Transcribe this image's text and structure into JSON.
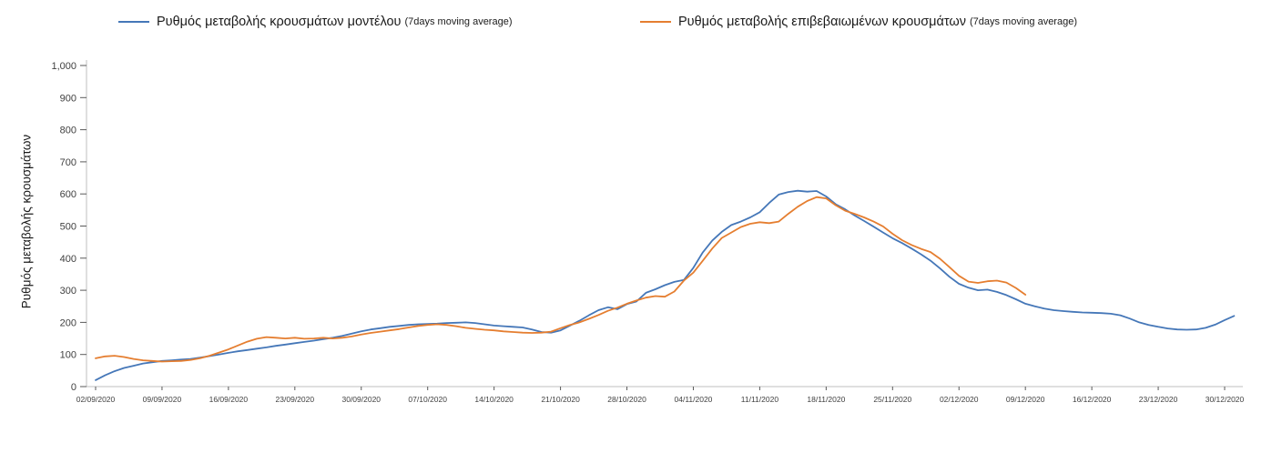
{
  "legend": {
    "items": [
      {
        "label": "Ρυθμός μεταβολής κρουσμάτων μοντέλου",
        "suffix": "(7days moving average)"
      },
      {
        "label": "Ρυθμός μεταβολής επιβεβαιωμένων κρουσμάτων",
        "suffix": "(7days moving average)"
      }
    ]
  },
  "chart_data": {
    "type": "line",
    "title": "",
    "xlabel": "",
    "ylabel": "Ρυθμός μεταβολής κρουσμάτων",
    "ylim": [
      0,
      1000
    ],
    "grid": false,
    "legend_position": "top",
    "colors": {
      "model_series": "#4577b8",
      "confirmed_series": "#e57e30",
      "axis": "#bfbfbf",
      "tick": "#595959"
    },
    "y_axis": {
      "ticks": [
        {
          "value": 0,
          "label": "0"
        },
        {
          "value": 100,
          "label": "100"
        },
        {
          "value": 200,
          "label": "200"
        },
        {
          "value": 300,
          "label": "300"
        },
        {
          "value": 400,
          "label": "400"
        },
        {
          "value": 500,
          "label": "500"
        },
        {
          "value": 600,
          "label": "600"
        },
        {
          "value": 700,
          "label": "700"
        },
        {
          "value": 800,
          "label": "800"
        },
        {
          "value": 900,
          "label": "900"
        },
        {
          "value": 1000,
          "label": "1,000"
        }
      ]
    },
    "x_axis": {
      "unit": "days since 02/09/2020",
      "ticks": [
        {
          "day": 0,
          "label": "02/09/2020"
        },
        {
          "day": 7,
          "label": "09/09/2020"
        },
        {
          "day": 14,
          "label": "16/09/2020"
        },
        {
          "day": 21,
          "label": "23/09/2020"
        },
        {
          "day": 28,
          "label": "30/09/2020"
        },
        {
          "day": 35,
          "label": "07/10/2020"
        },
        {
          "day": 42,
          "label": "14/10/2020"
        },
        {
          "day": 49,
          "label": "21/10/2020"
        },
        {
          "day": 56,
          "label": "28/10/2020"
        },
        {
          "day": 63,
          "label": "04/11/2020"
        },
        {
          "day": 70,
          "label": "11/11/2020"
        },
        {
          "day": 77,
          "label": "18/11/2020"
        },
        {
          "day": 84,
          "label": "25/11/2020"
        },
        {
          "day": 91,
          "label": "02/12/2020"
        },
        {
          "day": 98,
          "label": "09/12/2020"
        },
        {
          "day": 105,
          "label": "16/12/2020"
        },
        {
          "day": 112,
          "label": "23/12/2020"
        },
        {
          "day": 119,
          "label": "30/12/2020"
        }
      ]
    },
    "series": [
      {
        "name": "Ρυθμός μεταβολής κρουσμάτων μοντέλου (7days moving average)",
        "color": "#4577b8",
        "points": [
          [
            0,
            20
          ],
          [
            1,
            35
          ],
          [
            2,
            48
          ],
          [
            3,
            58
          ],
          [
            4,
            65
          ],
          [
            5,
            72
          ],
          [
            6,
            76
          ],
          [
            7,
            80
          ],
          [
            8,
            82
          ],
          [
            9,
            84
          ],
          [
            10,
            86
          ],
          [
            11,
            90
          ],
          [
            12,
            95
          ],
          [
            13,
            100
          ],
          [
            14,
            105
          ],
          [
            15,
            110
          ],
          [
            16,
            114
          ],
          [
            17,
            118
          ],
          [
            18,
            122
          ],
          [
            19,
            127
          ],
          [
            20,
            131
          ],
          [
            21,
            135
          ],
          [
            22,
            139
          ],
          [
            23,
            143
          ],
          [
            24,
            148
          ],
          [
            25,
            152
          ],
          [
            26,
            158
          ],
          [
            27,
            165
          ],
          [
            28,
            172
          ],
          [
            29,
            178
          ],
          [
            30,
            182
          ],
          [
            31,
            186
          ],
          [
            32,
            189
          ],
          [
            33,
            192
          ],
          [
            34,
            194
          ],
          [
            35,
            195
          ],
          [
            36,
            196
          ],
          [
            37,
            198
          ],
          [
            38,
            199
          ],
          [
            39,
            200
          ],
          [
            40,
            198
          ],
          [
            41,
            194
          ],
          [
            42,
            190
          ],
          [
            43,
            188
          ],
          [
            44,
            186
          ],
          [
            45,
            184
          ],
          [
            46,
            178
          ],
          [
            47,
            170
          ],
          [
            48,
            168
          ],
          [
            49,
            175
          ],
          [
            50,
            190
          ],
          [
            51,
            205
          ],
          [
            52,
            222
          ],
          [
            53,
            238
          ],
          [
            54,
            247
          ],
          [
            55,
            241
          ],
          [
            56,
            257
          ],
          [
            57,
            265
          ],
          [
            58,
            292
          ],
          [
            59,
            303
          ],
          [
            60,
            316
          ],
          [
            61,
            326
          ],
          [
            62,
            332
          ],
          [
            63,
            370
          ],
          [
            64,
            418
          ],
          [
            65,
            455
          ],
          [
            66,
            482
          ],
          [
            67,
            503
          ],
          [
            68,
            514
          ],
          [
            69,
            527
          ],
          [
            70,
            543
          ],
          [
            71,
            572
          ],
          [
            72,
            598
          ],
          [
            73,
            606
          ],
          [
            74,
            610
          ],
          [
            75,
            607
          ],
          [
            76,
            609
          ],
          [
            77,
            592
          ],
          [
            78,
            568
          ],
          [
            79,
            552
          ],
          [
            80,
            533
          ],
          [
            81,
            516
          ],
          [
            82,
            498
          ],
          [
            83,
            480
          ],
          [
            84,
            462
          ],
          [
            85,
            447
          ],
          [
            86,
            430
          ],
          [
            87,
            412
          ],
          [
            88,
            392
          ],
          [
            89,
            368
          ],
          [
            90,
            342
          ],
          [
            91,
            320
          ],
          [
            92,
            308
          ],
          [
            93,
            300
          ],
          [
            94,
            302
          ],
          [
            95,
            295
          ],
          [
            96,
            285
          ],
          [
            97,
            272
          ],
          [
            98,
            258
          ],
          [
            99,
            250
          ],
          [
            100,
            243
          ],
          [
            101,
            238
          ],
          [
            102,
            235
          ],
          [
            103,
            233
          ],
          [
            104,
            231
          ],
          [
            105,
            230
          ],
          [
            106,
            229
          ],
          [
            107,
            227
          ],
          [
            108,
            222
          ],
          [
            109,
            212
          ],
          [
            110,
            200
          ],
          [
            111,
            192
          ],
          [
            112,
            186
          ],
          [
            113,
            181
          ],
          [
            114,
            178
          ],
          [
            115,
            177
          ],
          [
            116,
            178
          ],
          [
            117,
            183
          ],
          [
            118,
            193
          ],
          [
            119,
            207
          ],
          [
            120,
            220
          ]
        ]
      },
      {
        "name": "Ρυθμός μεταβολής επιβεβαιωμένων κρουσμάτων (7days moving average)",
        "color": "#e57e30",
        "points": [
          [
            0,
            88
          ],
          [
            1,
            94
          ],
          [
            2,
            96
          ],
          [
            3,
            92
          ],
          [
            4,
            86
          ],
          [
            5,
            82
          ],
          [
            6,
            80
          ],
          [
            7,
            78
          ],
          [
            8,
            79
          ],
          [
            9,
            80
          ],
          [
            10,
            83
          ],
          [
            11,
            88
          ],
          [
            12,
            96
          ],
          [
            13,
            106
          ],
          [
            14,
            116
          ],
          [
            15,
            128
          ],
          [
            16,
            140
          ],
          [
            17,
            149
          ],
          [
            18,
            154
          ],
          [
            19,
            152
          ],
          [
            20,
            150
          ],
          [
            21,
            152
          ],
          [
            22,
            149
          ],
          [
            23,
            150
          ],
          [
            24,
            152
          ],
          [
            25,
            150
          ],
          [
            26,
            152
          ],
          [
            27,
            156
          ],
          [
            28,
            162
          ],
          [
            29,
            167
          ],
          [
            30,
            171
          ],
          [
            31,
            175
          ],
          [
            32,
            179
          ],
          [
            33,
            184
          ],
          [
            34,
            189
          ],
          [
            35,
            192
          ],
          [
            36,
            194
          ],
          [
            37,
            192
          ],
          [
            38,
            188
          ],
          [
            39,
            183
          ],
          [
            40,
            180
          ],
          [
            41,
            177
          ],
          [
            42,
            175
          ],
          [
            43,
            172
          ],
          [
            44,
            170
          ],
          [
            45,
            168
          ],
          [
            46,
            167
          ],
          [
            47,
            168
          ],
          [
            48,
            171
          ],
          [
            49,
            182
          ],
          [
            50,
            192
          ],
          [
            51,
            200
          ],
          [
            52,
            211
          ],
          [
            53,
            223
          ],
          [
            54,
            236
          ],
          [
            55,
            246
          ],
          [
            56,
            258
          ],
          [
            57,
            268
          ],
          [
            58,
            277
          ],
          [
            59,
            282
          ],
          [
            60,
            280
          ],
          [
            61,
            296
          ],
          [
            62,
            330
          ],
          [
            63,
            355
          ],
          [
            64,
            392
          ],
          [
            65,
            430
          ],
          [
            66,
            463
          ],
          [
            67,
            480
          ],
          [
            68,
            497
          ],
          [
            69,
            507
          ],
          [
            70,
            512
          ],
          [
            71,
            509
          ],
          [
            72,
            514
          ],
          [
            73,
            538
          ],
          [
            74,
            560
          ],
          [
            75,
            578
          ],
          [
            76,
            590
          ],
          [
            77,
            586
          ],
          [
            78,
            565
          ],
          [
            79,
            548
          ],
          [
            80,
            538
          ],
          [
            81,
            527
          ],
          [
            82,
            514
          ],
          [
            83,
            499
          ],
          [
            84,
            476
          ],
          [
            85,
            456
          ],
          [
            86,
            441
          ],
          [
            87,
            429
          ],
          [
            88,
            419
          ],
          [
            89,
            398
          ],
          [
            90,
            372
          ],
          [
            91,
            345
          ],
          [
            92,
            327
          ],
          [
            93,
            323
          ],
          [
            94,
            328
          ],
          [
            95,
            330
          ],
          [
            96,
            324
          ],
          [
            97,
            307
          ],
          [
            98,
            286
          ]
        ]
      }
    ]
  }
}
